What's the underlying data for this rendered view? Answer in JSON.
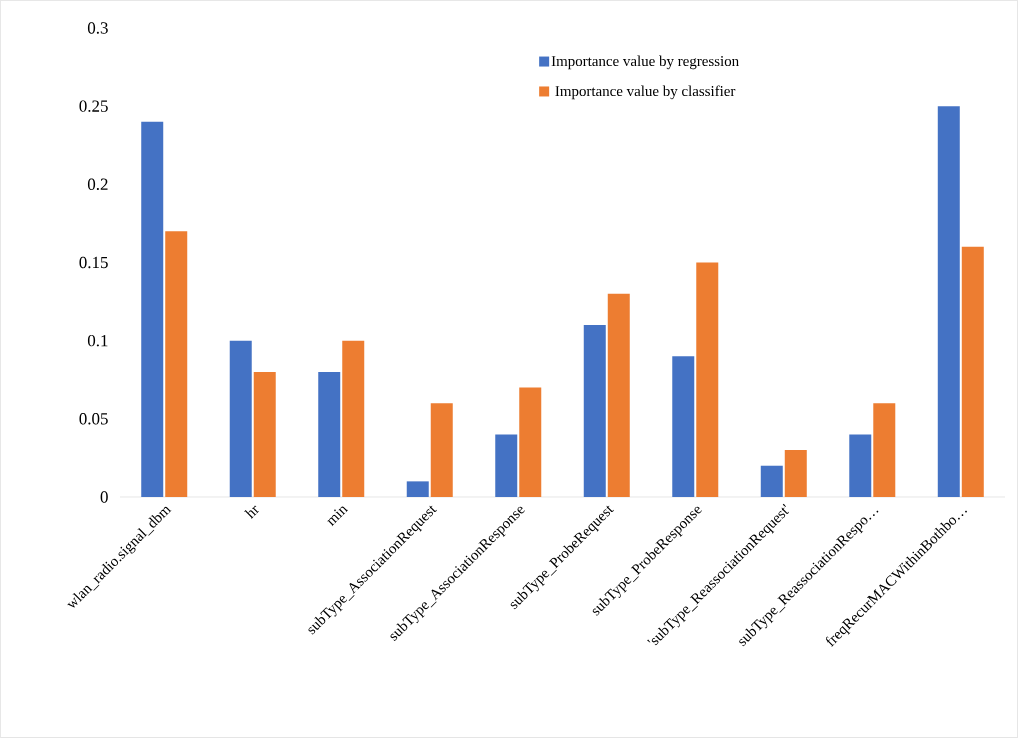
{
  "chart_data": {
    "type": "bar",
    "categories": [
      "wlan_radio.signal_dbm",
      "hr",
      "min",
      "subType_AssociationRequest",
      "subType_AssociationResponse",
      "subType_ProbeRequest",
      "subType_ProbeResponse",
      "'subType_ReassociationRequest'",
      "subType_ReassociationRespo…",
      "freqRecurMACWithinBothbo…"
    ],
    "series": [
      {
        "name": "Importance value by regression",
        "color": "#4472c4",
        "values": [
          0.24,
          0.1,
          0.08,
          0.01,
          0.04,
          0.11,
          0.09,
          0.02,
          0.04,
          0.25
        ]
      },
      {
        "name": "Importance value by classifier",
        "color": "#ed7d31",
        "values": [
          0.17,
          0.08,
          0.1,
          0.06,
          0.07,
          0.13,
          0.15,
          0.03,
          0.06,
          0.16
        ]
      }
    ],
    "ylim": [
      0,
      0.3
    ],
    "yticks": [
      0,
      0.05,
      0.1,
      0.15,
      0.2,
      0.25,
      0.3
    ],
    "legend": "top right"
  }
}
